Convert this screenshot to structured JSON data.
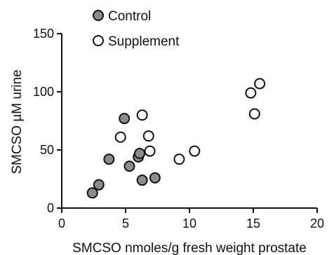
{
  "chart_data": {
    "type": "scatter",
    "title": "",
    "xlabel": "SMCSO nmoles/g fresh weight prostate",
    "ylabel": "SMCSO  µM urine",
    "xlim": [
      0,
      20
    ],
    "ylim": [
      0,
      150
    ],
    "x_ticks": [
      "0",
      "5",
      "10",
      "15",
      "20"
    ],
    "y_ticks": [
      "0",
      "50",
      "100",
      "150"
    ],
    "grid": false,
    "legend_position": "top-left",
    "series": [
      {
        "name": "Control",
        "fill": "#8c8c8c",
        "points": [
          {
            "x": 2.4,
            "y": 13
          },
          {
            "x": 2.9,
            "y": 20
          },
          {
            "x": 3.7,
            "y": 42
          },
          {
            "x": 4.9,
            "y": 77
          },
          {
            "x": 5.3,
            "y": 36
          },
          {
            "x": 6.0,
            "y": 44
          },
          {
            "x": 6.1,
            "y": 47
          },
          {
            "x": 6.3,
            "y": 24
          },
          {
            "x": 7.3,
            "y": 26
          }
        ]
      },
      {
        "name": "Supplement",
        "fill": "#ffffff",
        "points": [
          {
            "x": 4.6,
            "y": 61
          },
          {
            "x": 6.3,
            "y": 80
          },
          {
            "x": 6.8,
            "y": 62
          },
          {
            "x": 6.9,
            "y": 49
          },
          {
            "x": 9.2,
            "y": 42
          },
          {
            "x": 10.4,
            "y": 49
          },
          {
            "x": 14.8,
            "y": 99
          },
          {
            "x": 15.1,
            "y": 81
          },
          {
            "x": 15.5,
            "y": 107
          }
        ]
      }
    ]
  }
}
